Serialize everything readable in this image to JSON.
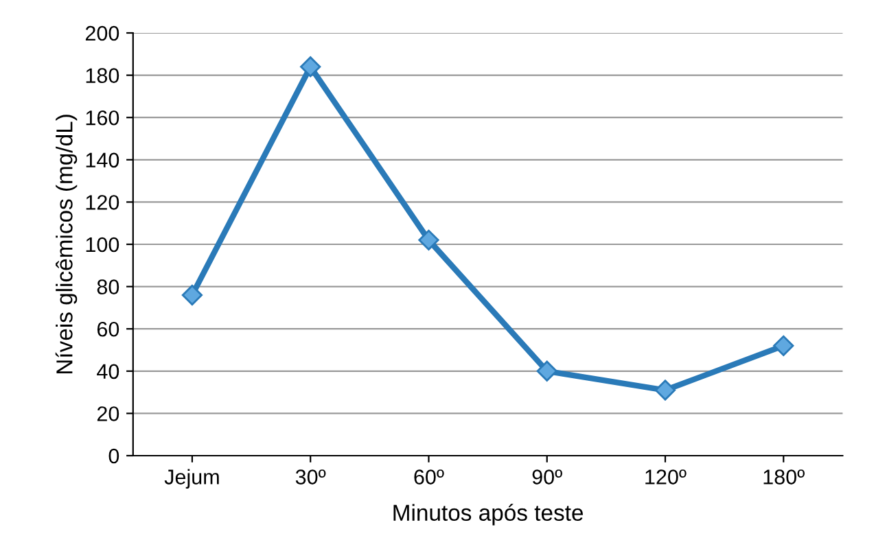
{
  "chart_data": {
    "type": "line",
    "xlabel": "Minutos após teste",
    "ylabel": "Níveis glicêmicos (mg/dL)",
    "categories": [
      "Jejum",
      "30º",
      "60º",
      "90º",
      "120º",
      "180º"
    ],
    "series": [
      {
        "color": "#2a7ab8",
        "values": [
          76,
          184,
          102,
          40,
          31,
          52
        ]
      }
    ],
    "ylim": [
      0,
      200
    ],
    "yticks": [
      0,
      20,
      40,
      60,
      80,
      100,
      120,
      140,
      160,
      180,
      200
    ],
    "grid": "y",
    "marker": "diamond",
    "line_style": "solid",
    "legend": false
  }
}
